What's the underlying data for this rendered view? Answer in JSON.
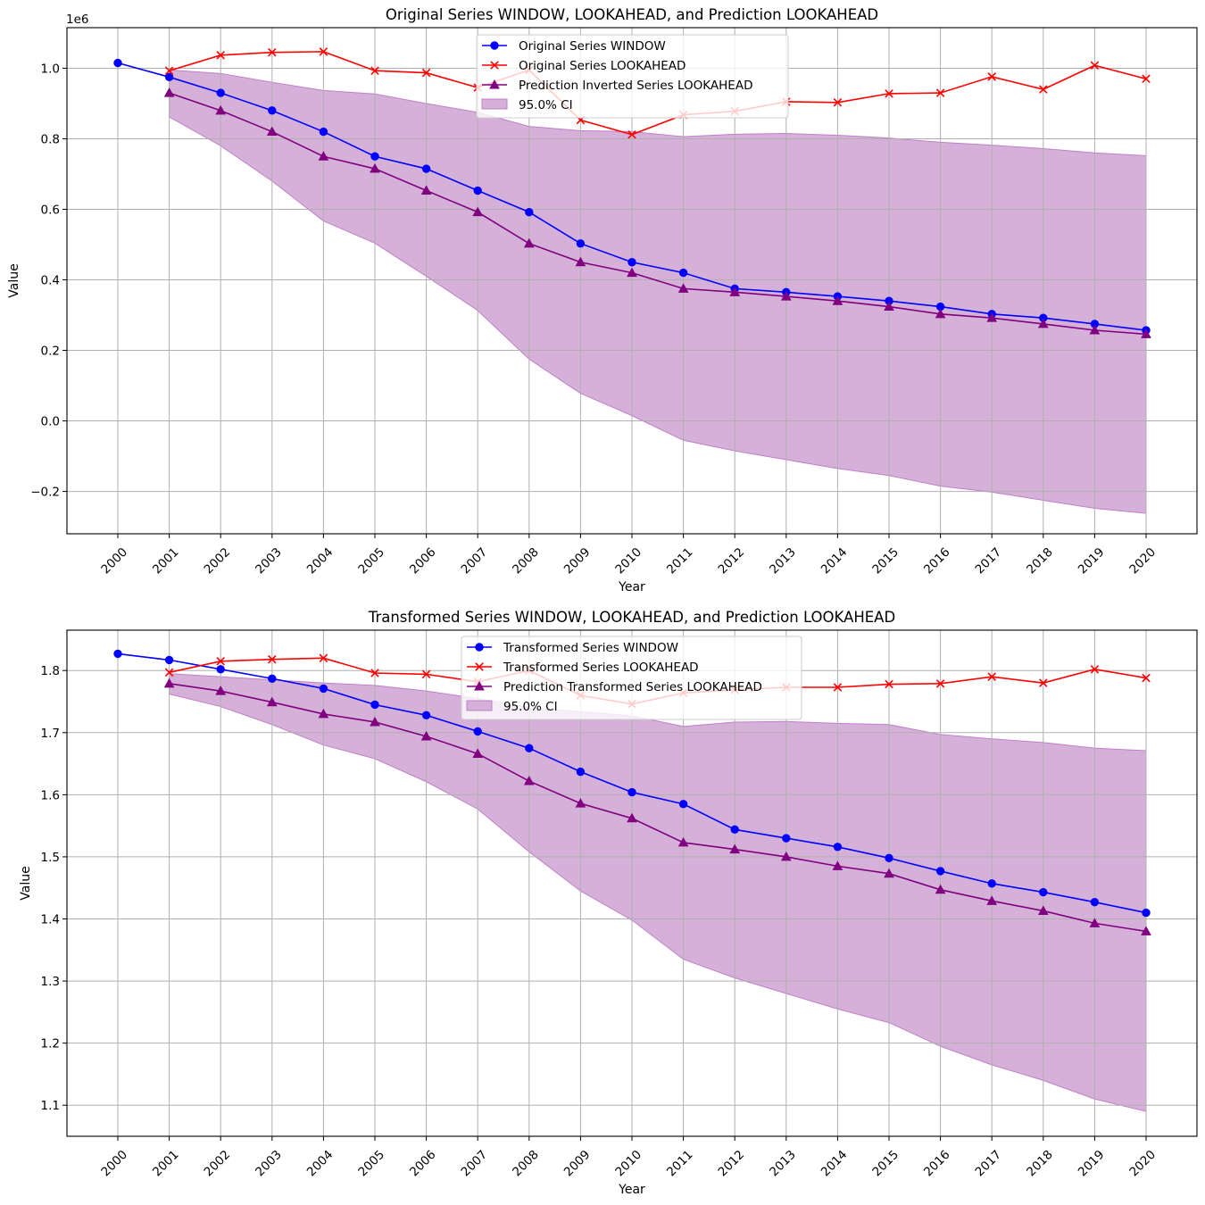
{
  "chart_data": [
    {
      "type": "line",
      "title": "Original Series WINDOW, LOOKAHEAD, and Prediction LOOKAHEAD",
      "xlabel": "Year",
      "ylabel": "Value",
      "offset_label": "1e6",
      "scale": 1000000,
      "ylim": [
        -0.32,
        1.115
      ],
      "yticks": [
        -0.2,
        0.0,
        0.2,
        0.4,
        0.6,
        0.8,
        1.0
      ],
      "ytick_labels": [
        "−0.2",
        "0.0",
        "0.2",
        "0.4",
        "0.6",
        "0.8",
        "1.0"
      ],
      "xticks": [
        "2000",
        "2001",
        "2002",
        "2003",
        "2004",
        "2005",
        "2006",
        "2007",
        "2008",
        "2009",
        "2010",
        "2011",
        "2012",
        "2013",
        "2014",
        "2015",
        "2016",
        "2017",
        "2018",
        "2019",
        "2020"
      ],
      "grid": true,
      "legend_position": "upper-center",
      "series": [
        {
          "name": "Original Series WINDOW",
          "color": "#0000ff",
          "marker": "circle",
          "x": [
            2000,
            2001,
            2002,
            2003,
            2004,
            2005,
            2006,
            2007,
            2008,
            2009,
            2010,
            2011,
            2012,
            2013,
            2014,
            2015,
            2016,
            2017,
            2018,
            2019,
            2020
          ],
          "values": [
            1.015,
            0.975,
            0.93,
            0.88,
            0.82,
            0.75,
            0.715,
            0.653,
            0.592,
            0.503,
            0.45,
            0.42,
            0.375,
            0.365,
            0.353,
            0.34,
            0.324,
            0.303,
            0.292,
            0.275,
            0.257
          ]
        },
        {
          "name": "Original Series LOOKAHEAD",
          "color": "#ff0000",
          "marker": "x",
          "x": [
            2001,
            2002,
            2003,
            2004,
            2005,
            2006,
            2007,
            2008,
            2009,
            2010,
            2011,
            2012,
            2013,
            2014,
            2015,
            2016,
            2017,
            2018,
            2019,
            2020
          ],
          "values": [
            0.993,
            1.037,
            1.045,
            1.047,
            0.993,
            0.987,
            0.945,
            0.995,
            0.853,
            0.812,
            0.868,
            0.878,
            0.905,
            0.903,
            0.928,
            0.93,
            0.976,
            0.94,
            1.008,
            0.97
          ]
        },
        {
          "name": "Prediction Inverted Series LOOKAHEAD",
          "color": "#800080",
          "marker": "triangle",
          "x": [
            2001,
            2002,
            2003,
            2004,
            2005,
            2006,
            2007,
            2008,
            2009,
            2010,
            2011,
            2012,
            2013,
            2014,
            2015,
            2016,
            2017,
            2018,
            2019,
            2020
          ],
          "values": [
            0.93,
            0.88,
            0.82,
            0.75,
            0.715,
            0.653,
            0.592,
            0.503,
            0.45,
            0.42,
            0.375,
            0.365,
            0.353,
            0.34,
            0.324,
            0.303,
            0.292,
            0.275,
            0.257,
            0.246
          ]
        }
      ],
      "ci": {
        "name": "95.0% CI",
        "color": "#d5b0d8",
        "edge_color": "#c080c8",
        "x": [
          2001,
          2002,
          2003,
          2004,
          2005,
          2006,
          2007,
          2008,
          2009,
          2010,
          2011,
          2012,
          2013,
          2014,
          2015,
          2016,
          2017,
          2018,
          2019,
          2020
        ],
        "lower": [
          0.862,
          0.78,
          0.68,
          0.567,
          0.504,
          0.41,
          0.313,
          0.175,
          0.078,
          0.015,
          -0.055,
          -0.085,
          -0.11,
          -0.135,
          -0.155,
          -0.185,
          -0.202,
          -0.225,
          -0.248,
          -0.262
        ],
        "upper": [
          0.995,
          0.985,
          0.96,
          0.937,
          0.927,
          0.9,
          0.875,
          0.835,
          0.823,
          0.82,
          0.806,
          0.813,
          0.815,
          0.81,
          0.802,
          0.79,
          0.782,
          0.772,
          0.76,
          0.752
        ]
      }
    },
    {
      "type": "line",
      "title": "Transformed Series WINDOW, LOOKAHEAD, and Prediction LOOKAHEAD",
      "xlabel": "Year",
      "ylabel": "Value",
      "offset_label": "",
      "scale": 1,
      "ylim": [
        1.05,
        1.865
      ],
      "yticks": [
        1.1,
        1.2,
        1.3,
        1.4,
        1.5,
        1.6,
        1.7,
        1.8
      ],
      "ytick_labels": [
        "1.1",
        "1.2",
        "1.3",
        "1.4",
        "1.5",
        "1.6",
        "1.7",
        "1.8"
      ],
      "xticks": [
        "2000",
        "2001",
        "2002",
        "2003",
        "2004",
        "2005",
        "2006",
        "2007",
        "2008",
        "2009",
        "2010",
        "2011",
        "2012",
        "2013",
        "2014",
        "2015",
        "2016",
        "2017",
        "2018",
        "2019",
        "2020"
      ],
      "grid": true,
      "legend_position": "upper-center",
      "series": [
        {
          "name": "Transformed Series WINDOW",
          "color": "#0000ff",
          "marker": "circle",
          "x": [
            2000,
            2001,
            2002,
            2003,
            2004,
            2005,
            2006,
            2007,
            2008,
            2009,
            2010,
            2011,
            2012,
            2013,
            2014,
            2015,
            2016,
            2017,
            2018,
            2019,
            2020
          ],
          "values": [
            1.827,
            1.817,
            1.802,
            1.787,
            1.771,
            1.745,
            1.728,
            1.702,
            1.675,
            1.637,
            1.604,
            1.585,
            1.544,
            1.53,
            1.516,
            1.498,
            1.477,
            1.457,
            1.443,
            1.427,
            1.41
          ]
        },
        {
          "name": "Transformed Series LOOKAHEAD",
          "color": "#ff0000",
          "marker": "x",
          "x": [
            2001,
            2002,
            2003,
            2004,
            2005,
            2006,
            2007,
            2008,
            2009,
            2010,
            2011,
            2012,
            2013,
            2014,
            2015,
            2016,
            2017,
            2018,
            2019,
            2020
          ],
          "values": [
            1.797,
            1.815,
            1.818,
            1.82,
            1.796,
            1.794,
            1.782,
            1.8,
            1.76,
            1.746,
            1.764,
            1.769,
            1.773,
            1.773,
            1.778,
            1.779,
            1.79,
            1.78,
            1.802,
            1.788
          ]
        },
        {
          "name": "Prediction Transformed Series LOOKAHEAD",
          "color": "#800080",
          "marker": "triangle",
          "x": [
            2001,
            2002,
            2003,
            2004,
            2005,
            2006,
            2007,
            2008,
            2009,
            2010,
            2011,
            2012,
            2013,
            2014,
            2015,
            2016,
            2017,
            2018,
            2019,
            2020
          ],
          "values": [
            1.779,
            1.767,
            1.749,
            1.73,
            1.717,
            1.694,
            1.666,
            1.622,
            1.586,
            1.562,
            1.523,
            1.512,
            1.5,
            1.485,
            1.473,
            1.447,
            1.429,
            1.413,
            1.393,
            1.38
          ]
        }
      ],
      "ci": {
        "name": "95.0% CI",
        "color": "#d5b0d8",
        "edge_color": "#c080c8",
        "x": [
          2001,
          2002,
          2003,
          2004,
          2005,
          2006,
          2007,
          2008,
          2009,
          2010,
          2011,
          2012,
          2013,
          2014,
          2015,
          2016,
          2017,
          2018,
          2019,
          2020
        ],
        "lower": [
          1.762,
          1.742,
          1.713,
          1.68,
          1.658,
          1.621,
          1.577,
          1.508,
          1.445,
          1.398,
          1.335,
          1.305,
          1.28,
          1.255,
          1.233,
          1.195,
          1.165,
          1.14,
          1.11,
          1.09
        ],
        "upper": [
          1.795,
          1.79,
          1.785,
          1.78,
          1.776,
          1.767,
          1.755,
          1.74,
          1.734,
          1.727,
          1.71,
          1.717,
          1.718,
          1.715,
          1.713,
          1.697,
          1.69,
          1.684,
          1.675,
          1.671
        ]
      }
    }
  ]
}
